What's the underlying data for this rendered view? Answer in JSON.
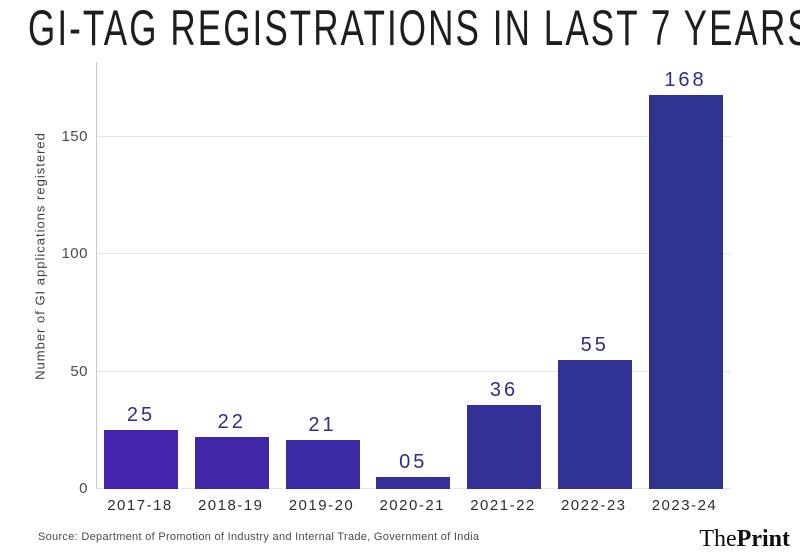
{
  "title": "GI-TAG REGISTRATIONS IN LAST 7 YEARS",
  "chart_data": {
    "type": "bar",
    "title": "GI-TAG REGISTRATIONS IN LAST 7 YEARS",
    "categories": [
      "2017-18",
      "2018-19",
      "2019-20",
      "2020-21",
      "2021-22",
      "2022-23",
      "2023-24"
    ],
    "values": [
      25,
      22,
      21,
      5,
      36,
      55,
      168
    ],
    "bar_labels": [
      "25",
      "22",
      "21",
      "05",
      "36",
      "55",
      "168"
    ],
    "bar_colors": [
      "#4423ad",
      "#3f27a7",
      "#3a2aa1",
      "#362e9b",
      "#322f96",
      "#2f3193",
      "#2d338f"
    ],
    "value_label_color": "#2f2c8b",
    "xlabel": "",
    "ylabel": "Number of GI applications registered",
    "yticks": [
      0,
      50,
      100,
      150
    ],
    "ylim": [
      0,
      182
    ],
    "grid": true,
    "legend_position": "none"
  },
  "footer": {
    "source": "Source: Department of Promotion of Industry and Internal Trade, Government of India",
    "brand": {
      "the": "The",
      "print": "Print"
    }
  }
}
